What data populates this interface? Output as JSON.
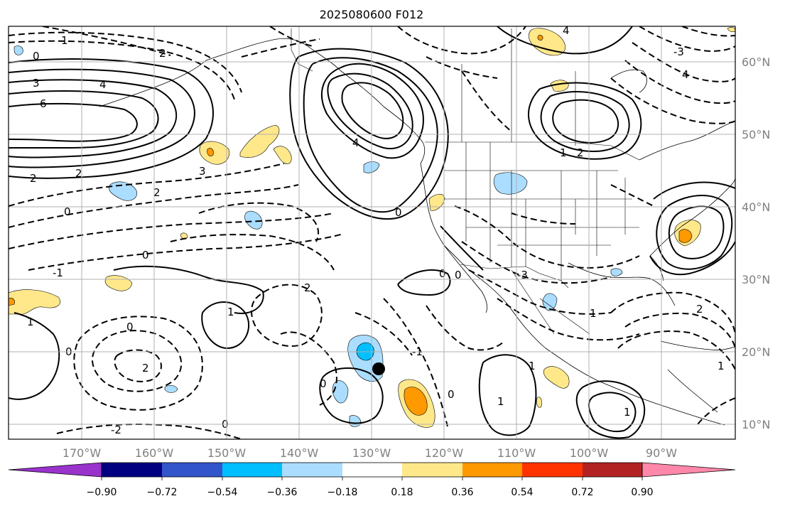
{
  "map": {
    "title": "2025080600 F012",
    "lon_labels": [
      "170°W",
      "160°W",
      "150°W",
      "140°W",
      "130°W",
      "120°W",
      "110°W",
      "100°W",
      "90°W"
    ],
    "lat_labels": [
      "60°N",
      "50°N",
      "40°N",
      "30°N",
      "20°N",
      "10°N"
    ],
    "contour_labels": [
      "1",
      "0",
      "3",
      "4",
      "6",
      "2",
      "2",
      "2",
      "0",
      "0",
      "-1",
      "-1",
      "0",
      "1",
      "2",
      "1",
      "4",
      "0",
      "1",
      "2",
      "2",
      "1",
      "0",
      "0",
      "1",
      "3",
      "0",
      "2",
      "0",
      "1",
      "1",
      "1",
      "0",
      "-2",
      "0",
      "-3",
      "2",
      "-3",
      "4",
      "4"
    ],
    "point_marker": "black-dot",
    "colors": {
      "purple": "#9933cc",
      "navy": "#000080",
      "blue": "#3355cc",
      "deepskyblue": "#00bfff",
      "lightblue": "#aaddff",
      "white": "#ffffff",
      "lightyellow": "#ffe88a",
      "orange": "#ff9900",
      "redorange": "#ff3300",
      "firebrick": "#b22222",
      "pink": "#ff88aa"
    }
  },
  "colorbar": {
    "tick_labels": [
      "−0.90",
      "−0.72",
      "−0.54",
      "−0.36",
      "−0.18",
      "0.18",
      "0.36",
      "0.54",
      "0.72",
      "0.90"
    ],
    "bins": [
      "#9933cc",
      "#000080",
      "#3355cc",
      "#00bfff",
      "#aaddff",
      "#ffffff",
      "#ffe88a",
      "#ff9900",
      "#ff3300",
      "#b22222",
      "#ff88aa"
    ]
  }
}
